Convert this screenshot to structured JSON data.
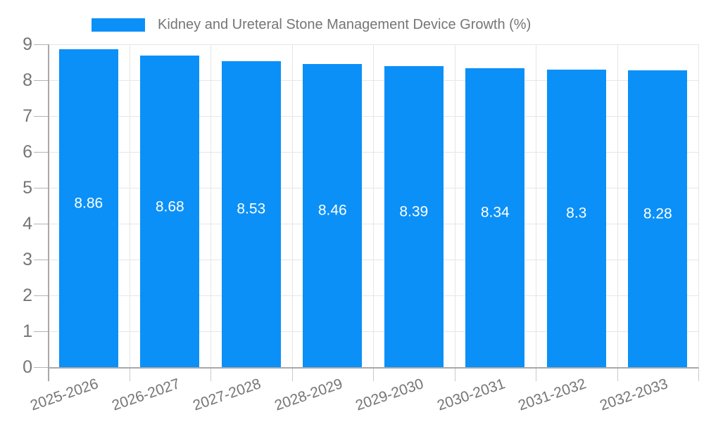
{
  "legend": {
    "label": "Kidney and Ureteral Stone Management Device Growth (%)",
    "swatch_color": "#0b90f8"
  },
  "chart_data": {
    "type": "bar",
    "title": "Kidney and Ureteral Stone Management Device Growth (%)",
    "categories": [
      "2025-2026",
      "2026-2027",
      "2027-2028",
      "2028-2029",
      "2029-2030",
      "2030-2031",
      "2031-2032",
      "2032-2033"
    ],
    "values": [
      8.86,
      8.68,
      8.53,
      8.46,
      8.39,
      8.34,
      8.3,
      8.28
    ],
    "data_labels": [
      "8.86",
      "8.68",
      "8.53",
      "8.46",
      "8.39",
      "8.34",
      "8.3",
      "8.28"
    ],
    "xlabel": "",
    "ylabel": "",
    "ylim": [
      0,
      9
    ],
    "yticks": [
      0,
      1,
      2,
      3,
      4,
      5,
      6,
      7,
      8,
      9
    ],
    "grid": true,
    "legend_position": "top",
    "bar_color": "#0b90f8",
    "data_label_color": "#ffffff",
    "axis_text_color": "#757575"
  }
}
